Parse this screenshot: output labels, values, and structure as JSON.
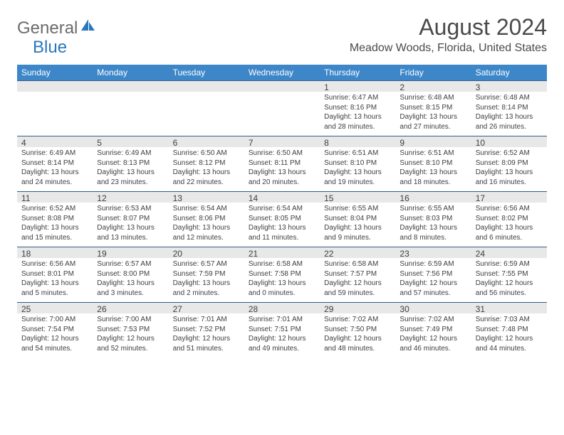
{
  "logo": {
    "general": "General",
    "blue": "Blue"
  },
  "header": {
    "month_title": "August 2024",
    "location": "Meadow Woods, Florida, United States"
  },
  "colors": {
    "header_bg": "#3d87c9",
    "header_text": "#ffffff",
    "band_bg": "#e8e8e8",
    "band_border": "#2f5d8a",
    "body_text": "#404040",
    "logo_gray": "#6b6b6b",
    "logo_blue": "#2a77bc",
    "page_bg": "#ffffff"
  },
  "daynames": [
    "Sunday",
    "Monday",
    "Tuesday",
    "Wednesday",
    "Thursday",
    "Friday",
    "Saturday"
  ],
  "weeks": [
    [
      {
        "n": "",
        "sr": "",
        "ss": "",
        "dl": ""
      },
      {
        "n": "",
        "sr": "",
        "ss": "",
        "dl": ""
      },
      {
        "n": "",
        "sr": "",
        "ss": "",
        "dl": ""
      },
      {
        "n": "",
        "sr": "",
        "ss": "",
        "dl": ""
      },
      {
        "n": "1",
        "sr": "Sunrise: 6:47 AM",
        "ss": "Sunset: 8:16 PM",
        "dl": "Daylight: 13 hours and 28 minutes."
      },
      {
        "n": "2",
        "sr": "Sunrise: 6:48 AM",
        "ss": "Sunset: 8:15 PM",
        "dl": "Daylight: 13 hours and 27 minutes."
      },
      {
        "n": "3",
        "sr": "Sunrise: 6:48 AM",
        "ss": "Sunset: 8:14 PM",
        "dl": "Daylight: 13 hours and 26 minutes."
      }
    ],
    [
      {
        "n": "4",
        "sr": "Sunrise: 6:49 AM",
        "ss": "Sunset: 8:14 PM",
        "dl": "Daylight: 13 hours and 24 minutes."
      },
      {
        "n": "5",
        "sr": "Sunrise: 6:49 AM",
        "ss": "Sunset: 8:13 PM",
        "dl": "Daylight: 13 hours and 23 minutes."
      },
      {
        "n": "6",
        "sr": "Sunrise: 6:50 AM",
        "ss": "Sunset: 8:12 PM",
        "dl": "Daylight: 13 hours and 22 minutes."
      },
      {
        "n": "7",
        "sr": "Sunrise: 6:50 AM",
        "ss": "Sunset: 8:11 PM",
        "dl": "Daylight: 13 hours and 20 minutes."
      },
      {
        "n": "8",
        "sr": "Sunrise: 6:51 AM",
        "ss": "Sunset: 8:10 PM",
        "dl": "Daylight: 13 hours and 19 minutes."
      },
      {
        "n": "9",
        "sr": "Sunrise: 6:51 AM",
        "ss": "Sunset: 8:10 PM",
        "dl": "Daylight: 13 hours and 18 minutes."
      },
      {
        "n": "10",
        "sr": "Sunrise: 6:52 AM",
        "ss": "Sunset: 8:09 PM",
        "dl": "Daylight: 13 hours and 16 minutes."
      }
    ],
    [
      {
        "n": "11",
        "sr": "Sunrise: 6:52 AM",
        "ss": "Sunset: 8:08 PM",
        "dl": "Daylight: 13 hours and 15 minutes."
      },
      {
        "n": "12",
        "sr": "Sunrise: 6:53 AM",
        "ss": "Sunset: 8:07 PM",
        "dl": "Daylight: 13 hours and 13 minutes."
      },
      {
        "n": "13",
        "sr": "Sunrise: 6:54 AM",
        "ss": "Sunset: 8:06 PM",
        "dl": "Daylight: 13 hours and 12 minutes."
      },
      {
        "n": "14",
        "sr": "Sunrise: 6:54 AM",
        "ss": "Sunset: 8:05 PM",
        "dl": "Daylight: 13 hours and 11 minutes."
      },
      {
        "n": "15",
        "sr": "Sunrise: 6:55 AM",
        "ss": "Sunset: 8:04 PM",
        "dl": "Daylight: 13 hours and 9 minutes."
      },
      {
        "n": "16",
        "sr": "Sunrise: 6:55 AM",
        "ss": "Sunset: 8:03 PM",
        "dl": "Daylight: 13 hours and 8 minutes."
      },
      {
        "n": "17",
        "sr": "Sunrise: 6:56 AM",
        "ss": "Sunset: 8:02 PM",
        "dl": "Daylight: 13 hours and 6 minutes."
      }
    ],
    [
      {
        "n": "18",
        "sr": "Sunrise: 6:56 AM",
        "ss": "Sunset: 8:01 PM",
        "dl": "Daylight: 13 hours and 5 minutes."
      },
      {
        "n": "19",
        "sr": "Sunrise: 6:57 AM",
        "ss": "Sunset: 8:00 PM",
        "dl": "Daylight: 13 hours and 3 minutes."
      },
      {
        "n": "20",
        "sr": "Sunrise: 6:57 AM",
        "ss": "Sunset: 7:59 PM",
        "dl": "Daylight: 13 hours and 2 minutes."
      },
      {
        "n": "21",
        "sr": "Sunrise: 6:58 AM",
        "ss": "Sunset: 7:58 PM",
        "dl": "Daylight: 13 hours and 0 minutes."
      },
      {
        "n": "22",
        "sr": "Sunrise: 6:58 AM",
        "ss": "Sunset: 7:57 PM",
        "dl": "Daylight: 12 hours and 59 minutes."
      },
      {
        "n": "23",
        "sr": "Sunrise: 6:59 AM",
        "ss": "Sunset: 7:56 PM",
        "dl": "Daylight: 12 hours and 57 minutes."
      },
      {
        "n": "24",
        "sr": "Sunrise: 6:59 AM",
        "ss": "Sunset: 7:55 PM",
        "dl": "Daylight: 12 hours and 56 minutes."
      }
    ],
    [
      {
        "n": "25",
        "sr": "Sunrise: 7:00 AM",
        "ss": "Sunset: 7:54 PM",
        "dl": "Daylight: 12 hours and 54 minutes."
      },
      {
        "n": "26",
        "sr": "Sunrise: 7:00 AM",
        "ss": "Sunset: 7:53 PM",
        "dl": "Daylight: 12 hours and 52 minutes."
      },
      {
        "n": "27",
        "sr": "Sunrise: 7:01 AM",
        "ss": "Sunset: 7:52 PM",
        "dl": "Daylight: 12 hours and 51 minutes."
      },
      {
        "n": "28",
        "sr": "Sunrise: 7:01 AM",
        "ss": "Sunset: 7:51 PM",
        "dl": "Daylight: 12 hours and 49 minutes."
      },
      {
        "n": "29",
        "sr": "Sunrise: 7:02 AM",
        "ss": "Sunset: 7:50 PM",
        "dl": "Daylight: 12 hours and 48 minutes."
      },
      {
        "n": "30",
        "sr": "Sunrise: 7:02 AM",
        "ss": "Sunset: 7:49 PM",
        "dl": "Daylight: 12 hours and 46 minutes."
      },
      {
        "n": "31",
        "sr": "Sunrise: 7:03 AM",
        "ss": "Sunset: 7:48 PM",
        "dl": "Daylight: 12 hours and 44 minutes."
      }
    ]
  ]
}
